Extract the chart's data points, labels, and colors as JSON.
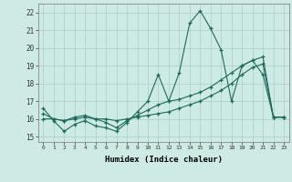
{
  "title": "",
  "xlabel": "Humidex (Indice chaleur)",
  "ylabel": "",
  "xlim": [
    -0.5,
    23.5
  ],
  "ylim": [
    14.7,
    22.5
  ],
  "xtick_labels": [
    "0",
    "1",
    "2",
    "3",
    "4",
    "5",
    "6",
    "7",
    "8",
    "9",
    "10",
    "11",
    "12",
    "13",
    "14",
    "15",
    "16",
    "17",
    "18",
    "19",
    "20",
    "21",
    "22",
    "23"
  ],
  "ytick_labels": [
    "15",
    "16",
    "17",
    "18",
    "19",
    "20",
    "21",
    "22"
  ],
  "ytick_values": [
    15,
    16,
    17,
    18,
    19,
    20,
    21,
    22
  ],
  "background_color": "#ceeae4",
  "grid_color": "#aacccc",
  "line_color": "#1a6b5a",
  "series1_x": [
    0,
    1,
    2,
    3,
    4,
    5,
    6,
    7,
    8,
    9,
    10,
    11,
    12,
    13,
    14,
    15,
    16,
    17,
    18,
    19,
    20,
    21,
    22,
    23
  ],
  "series1_y": [
    16.6,
    15.9,
    15.3,
    15.7,
    15.9,
    15.6,
    15.5,
    15.3,
    15.8,
    16.4,
    17.0,
    18.5,
    17.0,
    18.6,
    21.4,
    22.1,
    21.1,
    19.9,
    17.0,
    19.0,
    19.3,
    18.5,
    16.1,
    16.1
  ],
  "series2_x": [
    0,
    1,
    2,
    3,
    4,
    5,
    6,
    7,
    8,
    9,
    10,
    11,
    12,
    13,
    14,
    15,
    16,
    17,
    18,
    19,
    20,
    21,
    22,
    23
  ],
  "series2_y": [
    16.0,
    16.0,
    15.9,
    16.0,
    16.1,
    16.0,
    16.0,
    15.9,
    16.0,
    16.1,
    16.2,
    16.3,
    16.4,
    16.6,
    16.8,
    17.0,
    17.3,
    17.6,
    18.0,
    18.5,
    18.9,
    19.1,
    16.1,
    16.1
  ],
  "series3_x": [
    0,
    1,
    2,
    3,
    4,
    5,
    6,
    7,
    8,
    9,
    10,
    11,
    12,
    13,
    14,
    15,
    16,
    17,
    18,
    19,
    20,
    21,
    22,
    23
  ],
  "series3_y": [
    16.3,
    16.0,
    15.9,
    16.1,
    16.2,
    16.0,
    15.8,
    15.5,
    15.9,
    16.2,
    16.5,
    16.8,
    17.0,
    17.1,
    17.3,
    17.5,
    17.8,
    18.2,
    18.6,
    19.0,
    19.3,
    19.5,
    16.1,
    16.1
  ]
}
